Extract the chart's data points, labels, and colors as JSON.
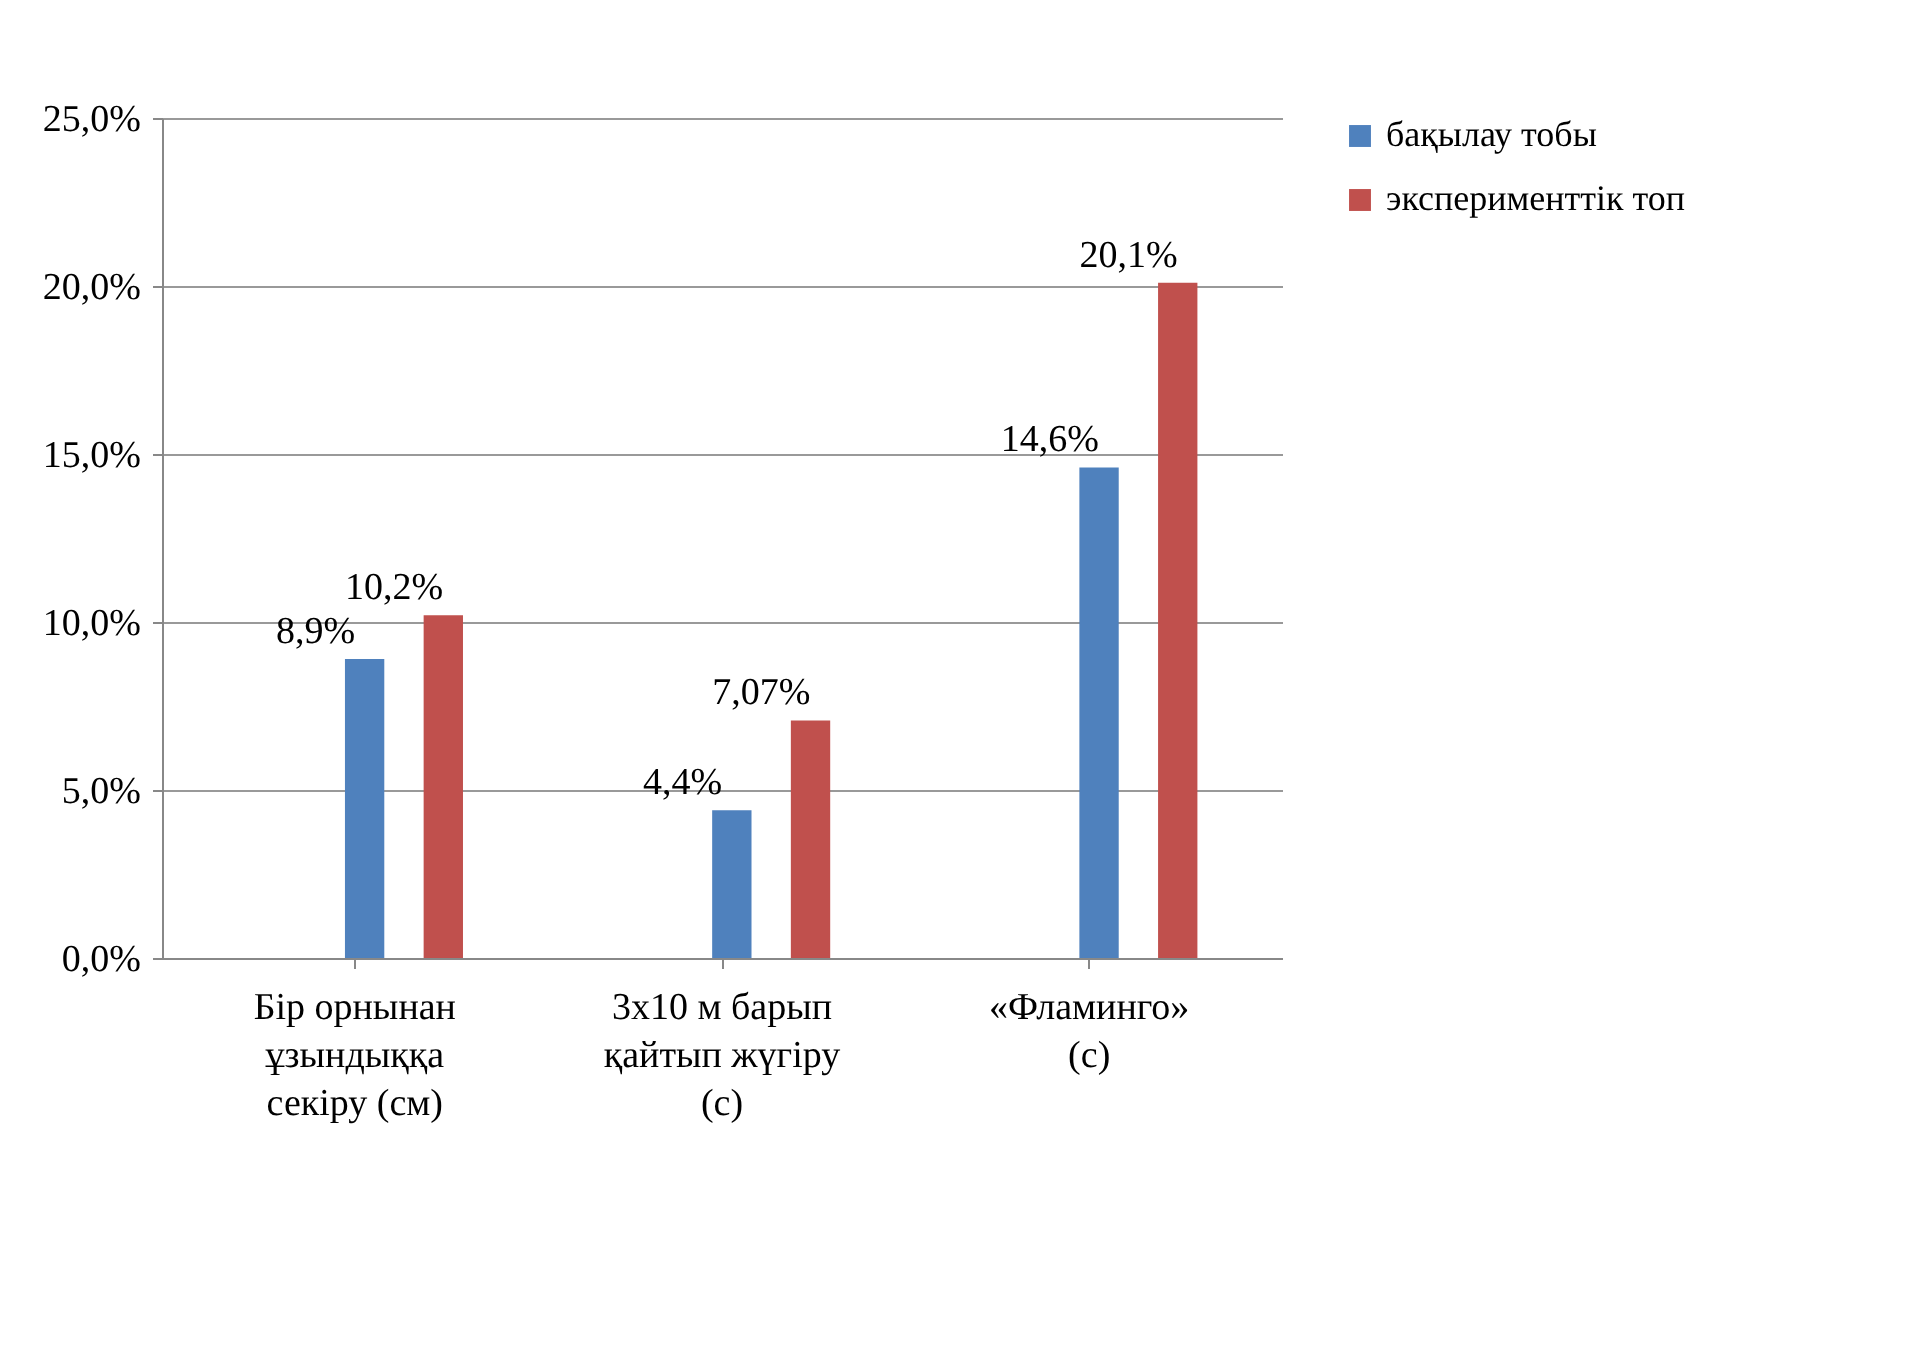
{
  "chart_data": {
    "type": "bar",
    "categories": [
      "Бір орнынан ұзындыққа секіру (см)",
      "3х10 м барып қайтып жүгіру (с)",
      "«Фламинго» (с)"
    ],
    "series": [
      {
        "name": "бақылау тобы",
        "color": "#4f81bd",
        "values": [
          8.9,
          4.4,
          14.6
        ],
        "value_labels": [
          "8,9%",
          "4,4%",
          "14,6%"
        ]
      },
      {
        "name": "эксперименттік топ",
        "color": "#c0504d",
        "values": [
          10.2,
          7.07,
          20.1
        ],
        "value_labels": [
          "10,2%",
          "7,07%",
          "20,1%"
        ]
      }
    ],
    "ylim": [
      0,
      25
    ],
    "yticks": [
      {
        "value": 0,
        "label": "0,0%"
      },
      {
        "value": 5,
        "label": "5,0%"
      },
      {
        "value": 10,
        "label": "10,0%"
      },
      {
        "value": 15,
        "label": "15,0%"
      },
      {
        "value": 20,
        "label": "20,0%"
      },
      {
        "value": 25,
        "label": "25,0%"
      }
    ],
    "grid": "y",
    "legend": "right"
  }
}
